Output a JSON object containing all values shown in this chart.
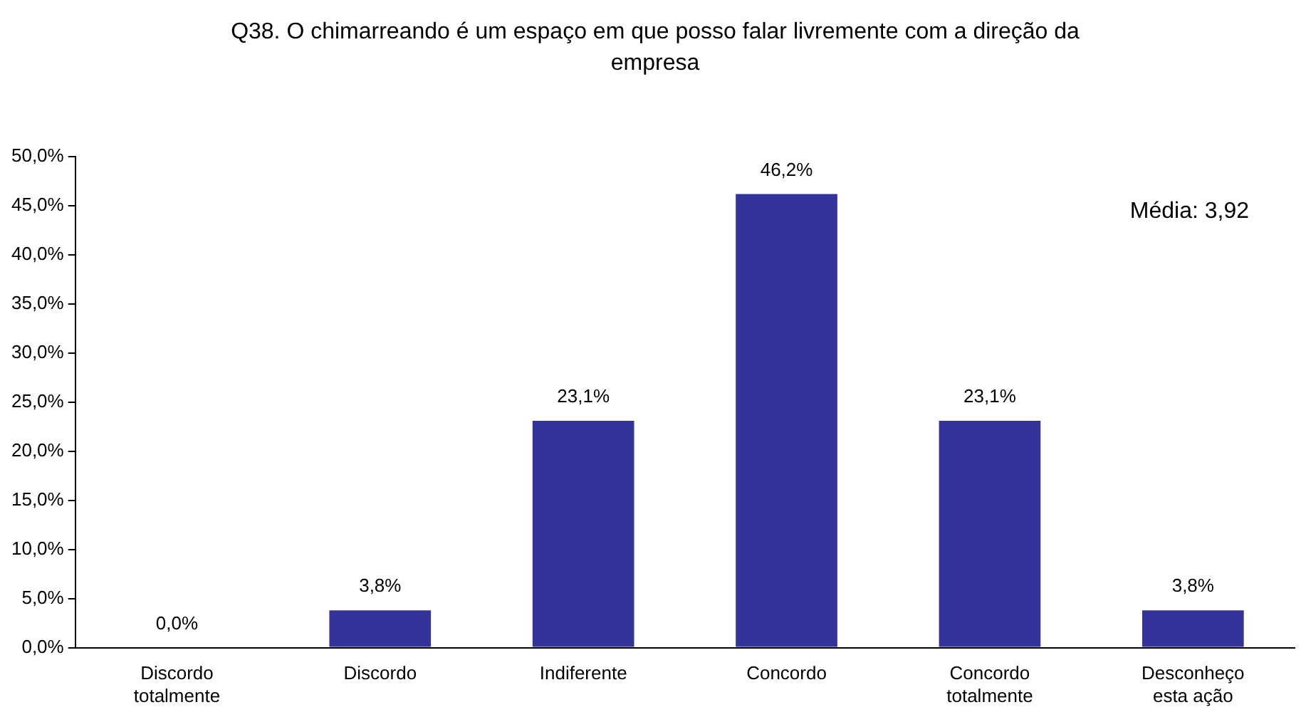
{
  "chart_data": {
    "type": "bar",
    "title": "Q38. O chimarreando é um espaço em que posso falar livremente com a direção da empresa",
    "categories": [
      "Discordo totalmente",
      "Discordo",
      "Indiferente",
      "Concordo",
      "Concordo totalmente",
      "Desconheço esta ação"
    ],
    "values": [
      0,
      3.8,
      23.1,
      46.2,
      23.1,
      3.8
    ],
    "value_labels": [
      "0,0%",
      "3,8%",
      "23,1%",
      "46,2%",
      "23,1%",
      "3,8%"
    ],
    "color": "#333399",
    "ylim": [
      0,
      50
    ],
    "yticks": [
      {
        "value": 0,
        "label": "0,0%"
      },
      {
        "value": 5,
        "label": "5,0%"
      },
      {
        "value": 10,
        "label": "10,0%"
      },
      {
        "value": 15,
        "label": "15,0%"
      },
      {
        "value": 20,
        "label": "20,0%"
      },
      {
        "value": 25,
        "label": "25,0%"
      },
      {
        "value": 30,
        "label": "30,0%"
      },
      {
        "value": 35,
        "label": "35,0%"
      },
      {
        "value": 40,
        "label": "40,0%"
      },
      {
        "value": 45,
        "label": "45,0%"
      },
      {
        "value": 50,
        "label": "50,0%"
      }
    ],
    "annotations": [
      "Média: 3,92"
    ]
  }
}
